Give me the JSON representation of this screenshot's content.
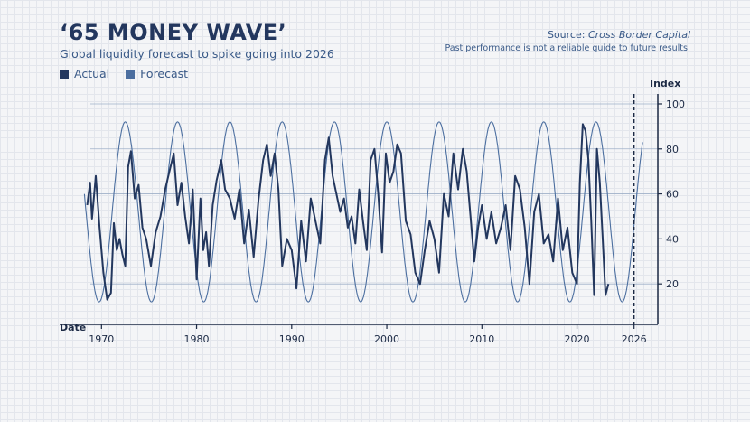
{
  "header": {
    "title": "‘65 MONEY WAVE’",
    "subtitle": "Global liquidity forecast to spike going into 2026",
    "source_label": "Source:",
    "source_name": "Cross Border Capital",
    "disclaimer": "Past performance is not a reliable guide to future results."
  },
  "colors": {
    "actual": "#23375e",
    "forecast": "#4c6fa0",
    "accent": "#1c2a45"
  },
  "chart_data": {
    "type": "line",
    "title": "‘65 MONEY WAVE’",
    "subtitle": "Global liquidity forecast to spike going into 2026",
    "xlabel": "Date",
    "ylabel": "Index",
    "xlim": [
      1967.5,
      2028.5
    ],
    "ylim": [
      2,
      102
    ],
    "x_ticks": [
      1970,
      1980,
      1990,
      2000,
      2010,
      2020,
      2026
    ],
    "y_ticks": [
      20,
      40,
      60,
      80,
      100
    ],
    "grid": true,
    "legend": "top-left",
    "reference_line": {
      "x": 2026,
      "style": "dashed"
    },
    "series": [
      {
        "name": "Actual",
        "x": [
          1968.5,
          1968.8,
          1969.0,
          1969.4,
          1969.8,
          1970.2,
          1970.6,
          1971.0,
          1971.3,
          1971.6,
          1971.9,
          1972.2,
          1972.5,
          1972.8,
          1973.1,
          1973.5,
          1973.9,
          1974.3,
          1974.7,
          1975.2,
          1975.7,
          1976.2,
          1976.7,
          1977.2,
          1977.6,
          1978.0,
          1978.4,
          1978.8,
          1979.2,
          1979.6,
          1980.0,
          1980.4,
          1980.7,
          1981.0,
          1981.3,
          1981.7,
          1982.1,
          1982.6,
          1983.0,
          1983.5,
          1984.0,
          1984.5,
          1985.0,
          1985.5,
          1986.0,
          1986.5,
          1987.0,
          1987.4,
          1987.8,
          1988.2,
          1988.6,
          1989.0,
          1989.5,
          1990.0,
          1990.5,
          1991.0,
          1991.5,
          1992.0,
          1992.5,
          1993.0,
          1993.5,
          1993.9,
          1994.3,
          1994.7,
          1995.1,
          1995.5,
          1995.9,
          1996.3,
          1996.7,
          1997.1,
          1997.5,
          1997.9,
          1998.3,
          1998.7,
          1999.1,
          1999.5,
          1999.9,
          2000.3,
          2000.7,
          2001.1,
          2001.5,
          2002.0,
          2002.5,
          2003.0,
          2003.5,
          2004.0,
          2004.5,
          2005.0,
          2005.5,
          2006.0,
          2006.5,
          2007.0,
          2007.5,
          2008.0,
          2008.4,
          2008.8,
          2009.2,
          2009.6,
          2010.0,
          2010.5,
          2011.0,
          2011.5,
          2012.0,
          2012.5,
          2013.0,
          2013.5,
          2014.0,
          2014.5,
          2015.0,
          2015.5,
          2016.0,
          2016.5,
          2017.0,
          2017.5,
          2018.0,
          2018.5,
          2019.0,
          2019.5,
          2020.0,
          2020.3,
          2020.6,
          2020.9,
          2021.2,
          2021.5,
          2021.8,
          2022.1,
          2022.4,
          2022.7,
          2023.0,
          2023.3
        ],
        "values": [
          55,
          65,
          49,
          68,
          45,
          25,
          13,
          16,
          47,
          35,
          40,
          33,
          28,
          72,
          79,
          58,
          64,
          45,
          40,
          28,
          43,
          50,
          62,
          71,
          78,
          55,
          65,
          50,
          38,
          62,
          22,
          58,
          35,
          43,
          28,
          55,
          66,
          75,
          62,
          58,
          49,
          62,
          38,
          53,
          32,
          57,
          75,
          82,
          68,
          78,
          62,
          28,
          40,
          35,
          18,
          48,
          30,
          58,
          48,
          38,
          75,
          85,
          68,
          60,
          52,
          58,
          45,
          50,
          38,
          62,
          48,
          35,
          75,
          80,
          60,
          34,
          78,
          65,
          70,
          82,
          78,
          48,
          42,
          25,
          20,
          35,
          48,
          40,
          25,
          60,
          50,
          78,
          62,
          80,
          70,
          50,
          30,
          45,
          55,
          40,
          52,
          38,
          45,
          55,
          35,
          68,
          62,
          45,
          20,
          52,
          60,
          38,
          42,
          30,
          58,
          35,
          45,
          25,
          20,
          65,
          91,
          88,
          75,
          48,
          15,
          80,
          65,
          40,
          15,
          20
        ]
      },
      {
        "name": "Forecast",
        "type": "sine",
        "period_years": 5.5,
        "peak_year": 1972.5,
        "amplitude": 40,
        "center": 52,
        "x_range": [
          1968.2,
          2026.9
        ]
      }
    ]
  },
  "axis_labels": {
    "x_title": "Date",
    "y_title": "Index"
  },
  "legend": [
    {
      "label": "Actual",
      "color": "#23375e"
    },
    {
      "label": "Forecast",
      "color": "#4c6fa0"
    }
  ]
}
